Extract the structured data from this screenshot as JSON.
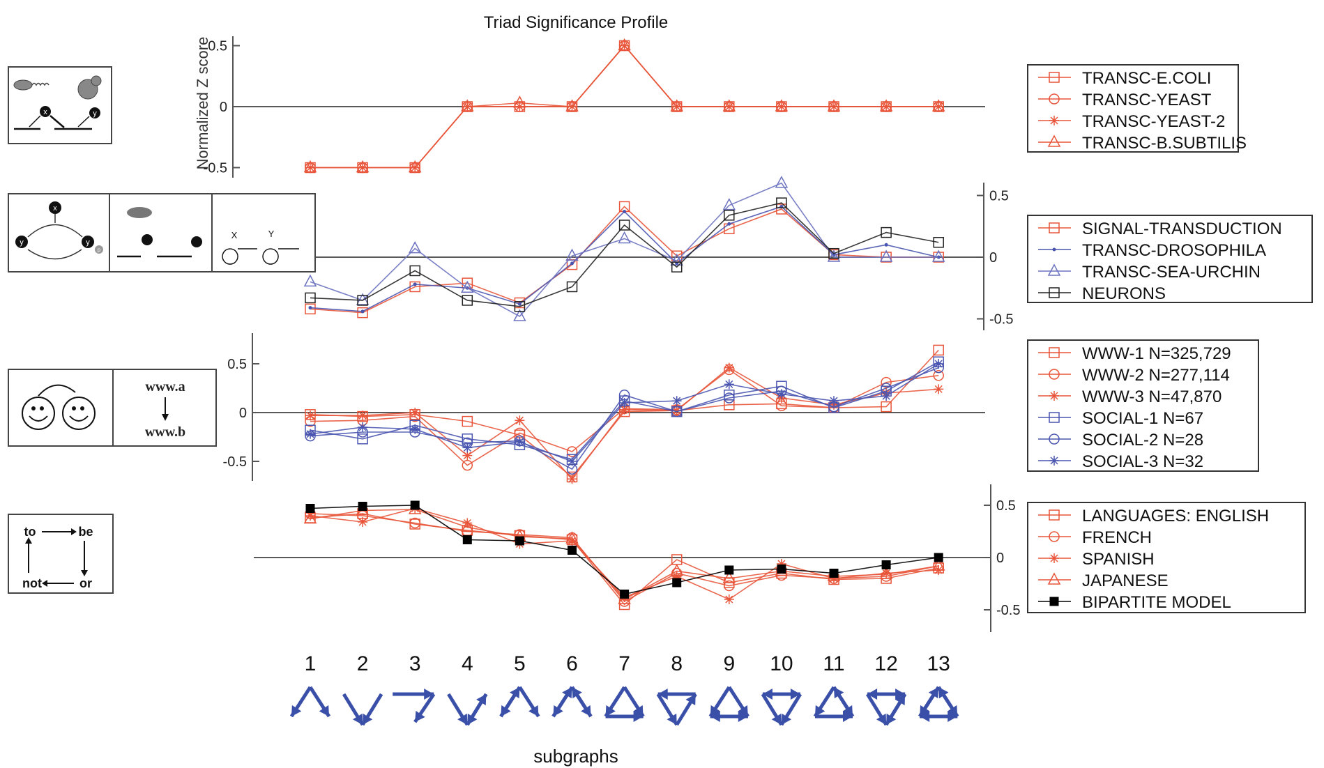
{
  "chart_data": {
    "type": "line",
    "title": "Triad Significance Profile",
    "ylabel": "Normalized Z score",
    "xlabel": "subgraphs",
    "x": [
      1,
      2,
      3,
      4,
      5,
      6,
      7,
      8,
      9,
      10,
      11,
      12,
      13
    ],
    "x_tick_labels": [
      "1",
      "2",
      "3",
      "4",
      "5",
      "6",
      "7",
      "8",
      "9",
      "10",
      "11",
      "12",
      "13"
    ],
    "panels": [
      {
        "id": "transcription",
        "ylim": [
          -0.6,
          0.6
        ],
        "yticks": [
          -0.5,
          0,
          0.5
        ],
        "ytick_labels": [
          "-0.5",
          "0",
          "0.5"
        ],
        "axis_side": "left",
        "legend_position": "right",
        "series": [
          {
            "name": "TRANSC-E.COLI",
            "color": "#e8553a",
            "marker": "square",
            "values": [
              -0.5,
              -0.5,
              -0.5,
              0,
              0,
              0,
              0.5,
              0,
              0,
              0,
              0,
              0,
              0
            ]
          },
          {
            "name": "TRANSC-YEAST",
            "color": "#e8553a",
            "marker": "circle",
            "values": [
              -0.5,
              -0.5,
              -0.5,
              0,
              0,
              0,
              0.5,
              0,
              0,
              0,
              0,
              0,
              0
            ]
          },
          {
            "name": "TRANSC-YEAST-2",
            "color": "#e8553a",
            "marker": "star",
            "values": [
              -0.5,
              -0.5,
              -0.5,
              0,
              0,
              0,
              0.5,
              0,
              0,
              0,
              0,
              0,
              0
            ]
          },
          {
            "name": "TRANSC-B.SUBTILIS",
            "color": "#e8553a",
            "marker": "triangle",
            "values": [
              -0.5,
              -0.5,
              -0.5,
              0,
              0.03,
              0,
              0.5,
              0,
              0,
              0,
              0,
              0,
              0
            ]
          }
        ]
      },
      {
        "id": "signal-neurons",
        "ylim": [
          -0.55,
          0.55
        ],
        "yticks": [
          -0.5,
          0,
          0.5
        ],
        "ytick_labels": [
          "-0.5",
          "0",
          "0.5"
        ],
        "axis_side": "right",
        "legend_position": "right",
        "series": [
          {
            "name": "SIGNAL-TRANSDUCTION",
            "color": "#e8553a",
            "marker": "square",
            "values": [
              -0.42,
              -0.45,
              -0.24,
              -0.21,
              -0.37,
              -0.06,
              0.41,
              0.01,
              0.23,
              0.39,
              0.02,
              0,
              0
            ]
          },
          {
            "name": "TRANSC-DROSOPHILA",
            "color": "#4a55b0",
            "marker": "dot",
            "values": [
              -0.41,
              -0.44,
              -0.22,
              -0.25,
              -0.38,
              -0.05,
              0.37,
              -0.05,
              0.27,
              0.41,
              0.02,
              0.1,
              0
            ]
          },
          {
            "name": "TRANSC-SEA-URCHIN",
            "color": "#6b72c0",
            "marker": "triangle",
            "values": [
              -0.2,
              -0.35,
              0.07,
              -0.25,
              -0.48,
              0.01,
              0.15,
              -0.03,
              0.42,
              0.6,
              0,
              0,
              0
            ]
          },
          {
            "name": "NEURONS",
            "color": "#222222",
            "marker": "square",
            "values": [
              -0.33,
              -0.35,
              -0.11,
              -0.35,
              -0.4,
              -0.24,
              0.26,
              -0.08,
              0.34,
              0.44,
              0.03,
              0.2,
              0.12
            ]
          }
        ]
      },
      {
        "id": "www-social",
        "ylim": [
          -0.7,
          0.78
        ],
        "yticks": [
          -0.5,
          0,
          0.5
        ],
        "ytick_labels": [
          "-0.5",
          "0",
          "0.5"
        ],
        "axis_side": "left",
        "legend_position": "right",
        "series": [
          {
            "name": "WWW-1 N=325,729",
            "color": "#e8553a",
            "marker": "square",
            "values": [
              -0.02,
              -0.04,
              -0.02,
              -0.09,
              -0.23,
              -0.66,
              0.01,
              0.02,
              0.08,
              0.09,
              0.05,
              0.06,
              0.64
            ]
          },
          {
            "name": "WWW-2 N=277,114",
            "color": "#e8553a",
            "marker": "circle",
            "values": [
              -0.09,
              -0.08,
              -0.04,
              -0.54,
              -0.21,
              -0.4,
              0.04,
              0.03,
              0.44,
              0.07,
              0.05,
              0.31,
              0.38
            ]
          },
          {
            "name": "WWW-3 N=47,870",
            "color": "#e8553a",
            "marker": "star",
            "values": [
              -0.03,
              -0.03,
              0,
              -0.44,
              -0.08,
              -0.68,
              0.03,
              0.02,
              0.46,
              0.15,
              0.08,
              0.2,
              0.24
            ]
          },
          {
            "name": "SOCIAL-1 N=67",
            "color": "#4a55b0",
            "marker": "square",
            "values": [
              -0.18,
              -0.27,
              -0.13,
              -0.27,
              -0.33,
              -0.48,
              0.12,
              0.01,
              0.18,
              0.27,
              0.05,
              0.22,
              0.52
            ]
          },
          {
            "name": "SOCIAL-2 N=28",
            "color": "#4a55b0",
            "marker": "circle",
            "values": [
              -0.24,
              -0.2,
              -0.2,
              -0.31,
              -0.29,
              -0.58,
              0.18,
              0.01,
              0.15,
              0.22,
              0.06,
              0.25,
              0.46
            ]
          },
          {
            "name": "SOCIAL-3 N=32",
            "color": "#4a55b0",
            "marker": "star",
            "values": [
              -0.22,
              -0.15,
              -0.17,
              -0.36,
              -0.3,
              -0.5,
              0.1,
              0.12,
              0.29,
              0.19,
              0.12,
              0.17,
              0.5
            ]
          }
        ]
      },
      {
        "id": "languages",
        "ylim": [
          -0.7,
          0.7
        ],
        "yticks": [
          -0.5,
          0,
          0.5
        ],
        "ytick_labels": [
          "-0.5",
          "0",
          "0.5"
        ],
        "axis_side": "right",
        "legend_position": "right",
        "series": [
          {
            "name": "LANGUAGES: ENGLISH",
            "color": "#e8553a",
            "marker": "square",
            "values": [
              0.38,
              0.42,
              0.32,
              0.26,
              0.21,
              0.17,
              -0.45,
              -0.02,
              -0.24,
              -0.15,
              -0.21,
              -0.2,
              -0.1
            ]
          },
          {
            "name": "FRENCH",
            "color": "#e8553a",
            "marker": "circle",
            "values": [
              0.42,
              0.4,
              0.33,
              0.25,
              0.22,
              0.19,
              -0.42,
              -0.15,
              -0.27,
              -0.17,
              -0.2,
              -0.18,
              -0.08
            ]
          },
          {
            "name": "SPANISH",
            "color": "#e8553a",
            "marker": "star",
            "values": [
              0.4,
              0.34,
              0.47,
              0.33,
              0.13,
              0.16,
              -0.38,
              -0.18,
              -0.4,
              -0.06,
              -0.2,
              -0.15,
              -0.12
            ]
          },
          {
            "name": "JAPANESE",
            "color": "#e8553a",
            "marker": "triangle",
            "values": [
              0.37,
              0.45,
              0.46,
              0.29,
              0.2,
              0.18,
              -0.4,
              -0.13,
              -0.2,
              -0.13,
              -0.18,
              -0.16,
              -0.08
            ]
          },
          {
            "name": "BIPARTITE MODEL",
            "color": "#000000",
            "marker": "filled-square",
            "values": [
              0.47,
              0.49,
              0.5,
              0.17,
              0.16,
              0.07,
              -0.35,
              -0.24,
              -0.12,
              -0.11,
              -0.15,
              -0.07,
              0
            ]
          }
        ]
      }
    ]
  },
  "illustrations": {
    "panel1": {
      "node_x": "x",
      "node_y": "y"
    },
    "panel2": {
      "node_x": "x",
      "node_y": "y",
      "node_p": "p",
      "neuron_x": "X",
      "neuron_y": "Y"
    },
    "panel3": {
      "www_a": "www.a",
      "www_b": "www.b"
    },
    "panel4": {
      "w1": "to",
      "w2": "be",
      "w3": "or",
      "w4": "not"
    }
  }
}
